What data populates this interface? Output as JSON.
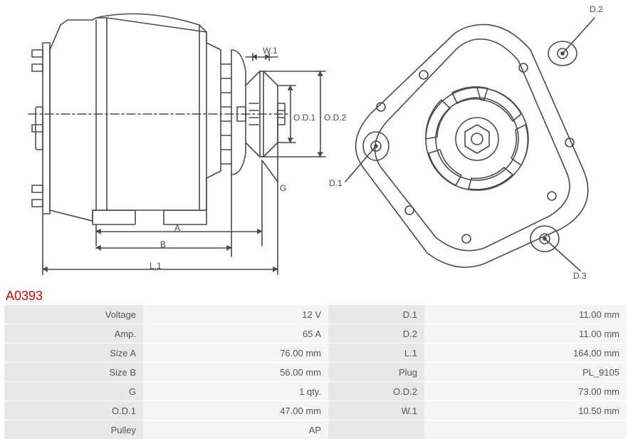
{
  "part_code": "A0393",
  "diagram": {
    "type": "technical-drawing",
    "stroke_color": "#4a4a4a",
    "stroke_width": 1.6,
    "fill": "none",
    "text_color": "#4a4a4a",
    "label_fontsize": 12,
    "side_view": {
      "labels": {
        "W1": "W.1",
        "OD1": "O.D.1",
        "OD2": "O.D.2",
        "G": "G",
        "A": "A",
        "B": "B",
        "L1": "L.1"
      }
    },
    "front_view": {
      "labels": {
        "D1": "D.1",
        "D2": "D.2",
        "D3": "D.3"
      }
    }
  },
  "specs_left": [
    {
      "label": "Voltage",
      "value": "12 V"
    },
    {
      "label": "Amp.",
      "value": "65 A"
    },
    {
      "label": "Size A",
      "value": "76.00 mm"
    },
    {
      "label": "Size B",
      "value": "56.00 mm"
    },
    {
      "label": "G",
      "value": "1 qty."
    },
    {
      "label": "O.D.1",
      "value": "47.00 mm"
    },
    {
      "label": "Pulley",
      "value": "AP"
    }
  ],
  "specs_right": [
    {
      "label": "D.1",
      "value": "11.00 mm"
    },
    {
      "label": "D.2",
      "value": "11.00 mm"
    },
    {
      "label": "L.1",
      "value": "164.00 mm"
    },
    {
      "label": "Plug",
      "value": "PL_9105"
    },
    {
      "label": "O.D.2",
      "value": "73.00 mm"
    },
    {
      "label": "W.1",
      "value": "10.50 mm"
    },
    {
      "label": "",
      "value": ""
    }
  ],
  "colors": {
    "part_code": "#e60000",
    "label_bg": "#e8e8e8",
    "value_bg": "#f5f5f5",
    "text": "#555555"
  }
}
